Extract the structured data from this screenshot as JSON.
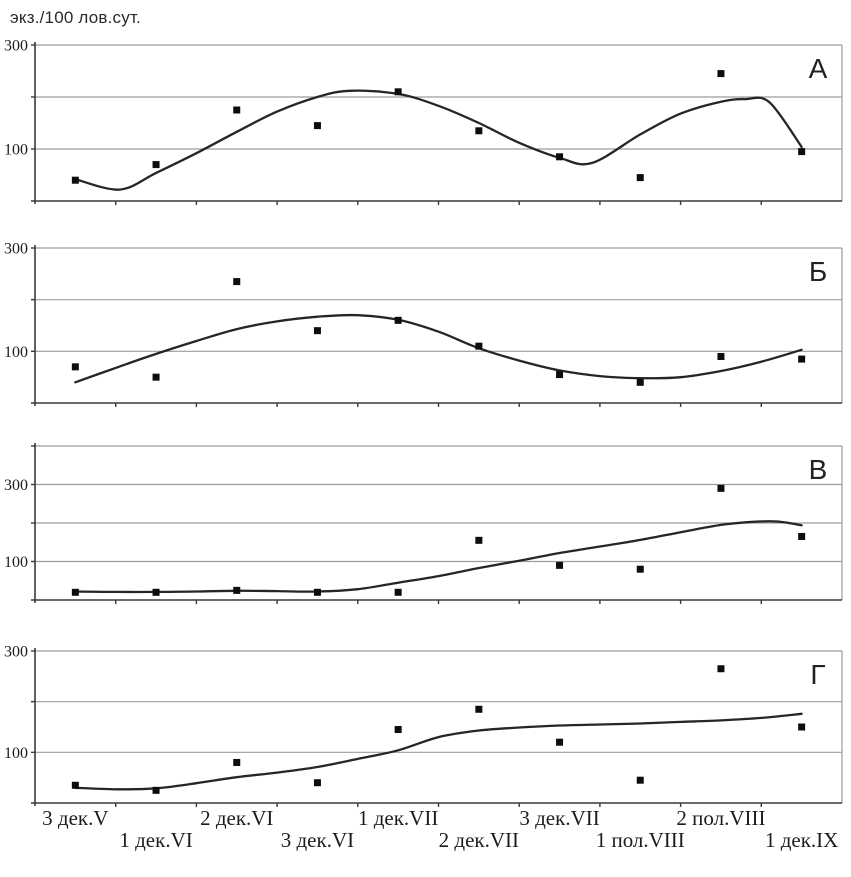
{
  "chart_data": {
    "type": "scatter",
    "ylabel": "экз./100 лов.сут.",
    "xlabel": "",
    "legend": null,
    "grid": true,
    "categories": [
      "3 дек.V",
      "1 дек.VI",
      "2 дек.VI",
      "3 дек.VI",
      "1 дек.VII",
      "2 дек.VII",
      "3 дек.VII",
      "1 пол.VIII",
      "2 пол.VIII",
      "1 дек.IX"
    ],
    "panels": [
      {
        "label": "А",
        "ylim": [
          0,
          300
        ],
        "gridline_step": 100,
        "ytick_labels": [
          "300",
          "100"
        ],
        "ytick_values": [
          300,
          100
        ],
        "points": [
          40,
          70,
          175,
          145,
          210,
          135,
          85,
          45,
          245,
          95
        ],
        "trend": [
          [
            0,
            42
          ],
          [
            0.55,
            22
          ],
          [
            1,
            54
          ],
          [
            1.5,
            92
          ],
          [
            2,
            133
          ],
          [
            2.5,
            172
          ],
          [
            3,
            200
          ],
          [
            3.4,
            212
          ],
          [
            4,
            206
          ],
          [
            4.5,
            183
          ],
          [
            5,
            150
          ],
          [
            5.5,
            112
          ],
          [
            6,
            83
          ],
          [
            6.4,
            73
          ],
          [
            7,
            128
          ],
          [
            7.5,
            168
          ],
          [
            8,
            191
          ],
          [
            8.3,
            196
          ],
          [
            8.6,
            190
          ],
          [
            9,
            104
          ]
        ]
      },
      {
        "label": "Б",
        "ylim": [
          0,
          300
        ],
        "gridline_step": 100,
        "ytick_labels": [
          "300",
          "100"
        ],
        "ytick_values": [
          300,
          100
        ],
        "points": [
          70,
          50,
          235,
          140,
          160,
          110,
          55,
          40,
          90,
          85
        ],
        "trend": [
          [
            0,
            40
          ],
          [
            0.5,
            68
          ],
          [
            1,
            95
          ],
          [
            1.5,
            120
          ],
          [
            2,
            143
          ],
          [
            2.5,
            158
          ],
          [
            3,
            167
          ],
          [
            3.5,
            170
          ],
          [
            4,
            161
          ],
          [
            4.5,
            138
          ],
          [
            5,
            106
          ],
          [
            5.5,
            82
          ],
          [
            6,
            63
          ],
          [
            6.5,
            52
          ],
          [
            7,
            48
          ],
          [
            7.5,
            50
          ],
          [
            8,
            62
          ],
          [
            8.5,
            80
          ],
          [
            9,
            103
          ]
        ]
      },
      {
        "label": "В",
        "ylim": [
          0,
          400
        ],
        "gridline_step": 100,
        "ytick_labels": [
          "300",
          "100"
        ],
        "ytick_values": [
          300,
          100
        ],
        "points": [
          20,
          20,
          25,
          20,
          20,
          155,
          90,
          80,
          290,
          165
        ],
        "trend": [
          [
            0,
            22
          ],
          [
            0.5,
            21
          ],
          [
            1,
            21
          ],
          [
            1.5,
            22
          ],
          [
            2,
            24
          ],
          [
            2.5,
            23
          ],
          [
            3,
            22
          ],
          [
            3.5,
            28
          ],
          [
            4,
            45
          ],
          [
            4.5,
            62
          ],
          [
            5,
            83
          ],
          [
            5.5,
            102
          ],
          [
            6,
            122
          ],
          [
            6.5,
            139
          ],
          [
            7,
            156
          ],
          [
            7.5,
            176
          ],
          [
            8,
            195
          ],
          [
            8.4,
            203
          ],
          [
            8.7,
            204
          ],
          [
            9,
            194
          ]
        ]
      },
      {
        "label": "Г",
        "ylim": [
          0,
          300
        ],
        "gridline_step": 100,
        "ytick_labels": [
          "300",
          "100"
        ],
        "ytick_values": [
          300,
          100
        ],
        "points": [
          35,
          25,
          80,
          40,
          145,
          185,
          120,
          45,
          265,
          150
        ],
        "trend": [
          [
            0,
            30
          ],
          [
            0.5,
            27
          ],
          [
            1,
            29
          ],
          [
            1.5,
            39
          ],
          [
            2,
            51
          ],
          [
            2.5,
            60
          ],
          [
            3,
            71
          ],
          [
            3.5,
            87
          ],
          [
            4,
            104
          ],
          [
            4.5,
            130
          ],
          [
            5,
            143
          ],
          [
            5.5,
            149
          ],
          [
            6,
            153
          ],
          [
            6.5,
            155
          ],
          [
            7,
            157
          ],
          [
            7.5,
            160
          ],
          [
            8,
            163
          ],
          [
            8.5,
            168
          ],
          [
            9,
            176
          ]
        ]
      }
    ]
  },
  "colors": {
    "background": "#ffffff",
    "gridline": "#9c9c9c",
    "axis": "#3a3a3a",
    "trend_line": "#262626",
    "point": "#0d0d0d",
    "text": "#1c1c1c"
  }
}
